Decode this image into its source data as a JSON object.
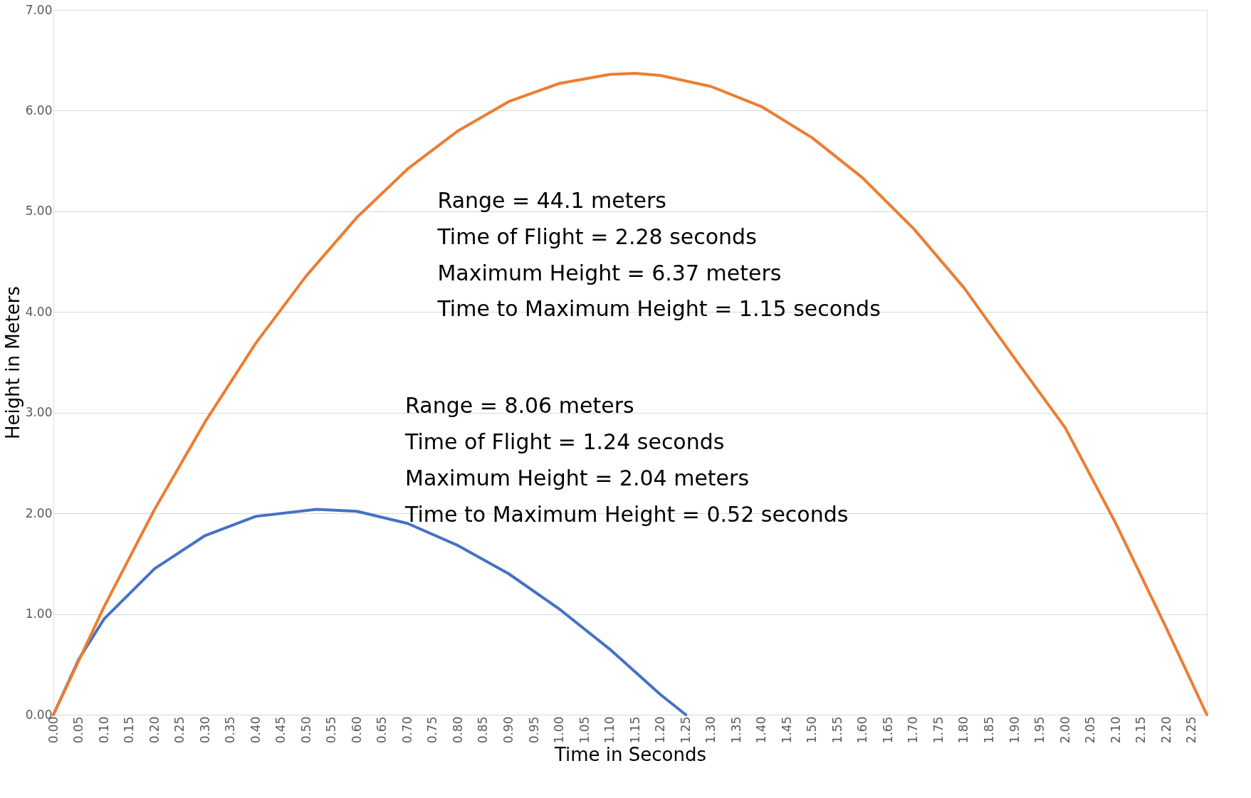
{
  "chart_data": {
    "type": "line",
    "xlabel": "Time in Seconds",
    "ylabel": "Height in Meters",
    "xlim": [
      0,
      2.28
    ],
    "ylim": [
      0,
      7
    ],
    "xticks": [
      {
        "value": 0,
        "label": "0.00"
      },
      {
        "value": 0.05,
        "label": "0.05"
      },
      {
        "value": 0.1,
        "label": "0.10"
      },
      {
        "value": 0.15,
        "label": "0.15"
      },
      {
        "value": 0.2,
        "label": "0.20"
      },
      {
        "value": 0.25,
        "label": "0.25"
      },
      {
        "value": 0.3,
        "label": "0.30"
      },
      {
        "value": 0.35,
        "label": "0.35"
      },
      {
        "value": 0.4,
        "label": "0.40"
      },
      {
        "value": 0.45,
        "label": "0.45"
      },
      {
        "value": 0.5,
        "label": "0.50"
      },
      {
        "value": 0.55,
        "label": "0.55"
      },
      {
        "value": 0.6,
        "label": "0.60"
      },
      {
        "value": 0.65,
        "label": "0.65"
      },
      {
        "value": 0.7,
        "label": "0.70"
      },
      {
        "value": 0.75,
        "label": "0.75"
      },
      {
        "value": 0.8,
        "label": "0.80"
      },
      {
        "value": 0.85,
        "label": "0.85"
      },
      {
        "value": 0.9,
        "label": "0.90"
      },
      {
        "value": 0.95,
        "label": "0.95"
      },
      {
        "value": 1,
        "label": "1.00"
      },
      {
        "value": 1.05,
        "label": "1.05"
      },
      {
        "value": 1.1,
        "label": "1.10"
      },
      {
        "value": 1.15,
        "label": "1.15"
      },
      {
        "value": 1.2,
        "label": "1.20"
      },
      {
        "value": 1.25,
        "label": "1.25"
      },
      {
        "value": 1.3,
        "label": "1.30"
      },
      {
        "value": 1.35,
        "label": "1.35"
      },
      {
        "value": 1.4,
        "label": "1.40"
      },
      {
        "value": 1.45,
        "label": "1.45"
      },
      {
        "value": 1.5,
        "label": "1.50"
      },
      {
        "value": 1.55,
        "label": "1.55"
      },
      {
        "value": 1.6,
        "label": "1.60"
      },
      {
        "value": 1.65,
        "label": "1.65"
      },
      {
        "value": 1.7,
        "label": "1.70"
      },
      {
        "value": 1.75,
        "label": "1.75"
      },
      {
        "value": 1.8,
        "label": "1.80"
      },
      {
        "value": 1.85,
        "label": "1.85"
      },
      {
        "value": 1.9,
        "label": "1.90"
      },
      {
        "value": 1.95,
        "label": "1.95"
      },
      {
        "value": 2,
        "label": "2.00"
      },
      {
        "value": 2.05,
        "label": "2.05"
      },
      {
        "value": 2.1,
        "label": "2.10"
      },
      {
        "value": 2.15,
        "label": "2.15"
      },
      {
        "value": 2.2,
        "label": "2.20"
      },
      {
        "value": 2.25,
        "label": "2.25"
      }
    ],
    "yticks": [
      {
        "value": 0,
        "label": "0.00"
      },
      {
        "value": 1,
        "label": "1.00"
      },
      {
        "value": 2,
        "label": "2.00"
      },
      {
        "value": 3,
        "label": "3.00"
      },
      {
        "value": 4,
        "label": "4.00"
      },
      {
        "value": 5,
        "label": "5.00"
      },
      {
        "value": 6,
        "label": "6.00"
      },
      {
        "value": 7,
        "label": "7.00"
      }
    ],
    "grid": "y",
    "legend": false,
    "marker": "none",
    "line_style": "solid",
    "series": [
      {
        "color": "#4472c4",
        "x": [
          0,
          0.05,
          0.1,
          0.2,
          0.3,
          0.4,
          0.52,
          0.6,
          0.7,
          0.8,
          0.9,
          1.0,
          1.1,
          1.2,
          1.25
        ],
        "values": [
          0,
          0.55,
          0.95,
          1.45,
          1.78,
          1.97,
          2.04,
          2.02,
          1.9,
          1.68,
          1.4,
          1.05,
          0.65,
          0.2,
          0
        ]
      },
      {
        "color": "#ed7d31",
        "x": [
          0,
          0.1,
          0.2,
          0.3,
          0.4,
          0.5,
          0.6,
          0.7,
          0.8,
          0.9,
          1.0,
          1.1,
          1.15,
          1.2,
          1.3,
          1.4,
          1.5,
          1.6,
          1.7,
          1.8,
          1.9,
          2.0,
          2.1,
          2.2,
          2.28
        ],
        "values": [
          0,
          1.07,
          2.04,
          2.91,
          3.69,
          4.36,
          4.94,
          5.42,
          5.8,
          6.09,
          6.27,
          6.36,
          6.37,
          6.35,
          6.24,
          6.04,
          5.73,
          5.33,
          4.83,
          4.24,
          3.54,
          2.85,
          1.9,
          0.86,
          0
        ]
      }
    ],
    "annotations": [
      "Range = 44.1 meters",
      "Time of Flight = 2.28 seconds",
      "Maximum Height = 6.37 meters",
      "Time to Maximum Height = 1.15 seconds",
      "Range = 8.06 meters",
      "Time of Flight = 1.24 seconds",
      "Maximum Height = 2.04 meters",
      "Time to Maximum Height = 0.52 seconds"
    ]
  }
}
